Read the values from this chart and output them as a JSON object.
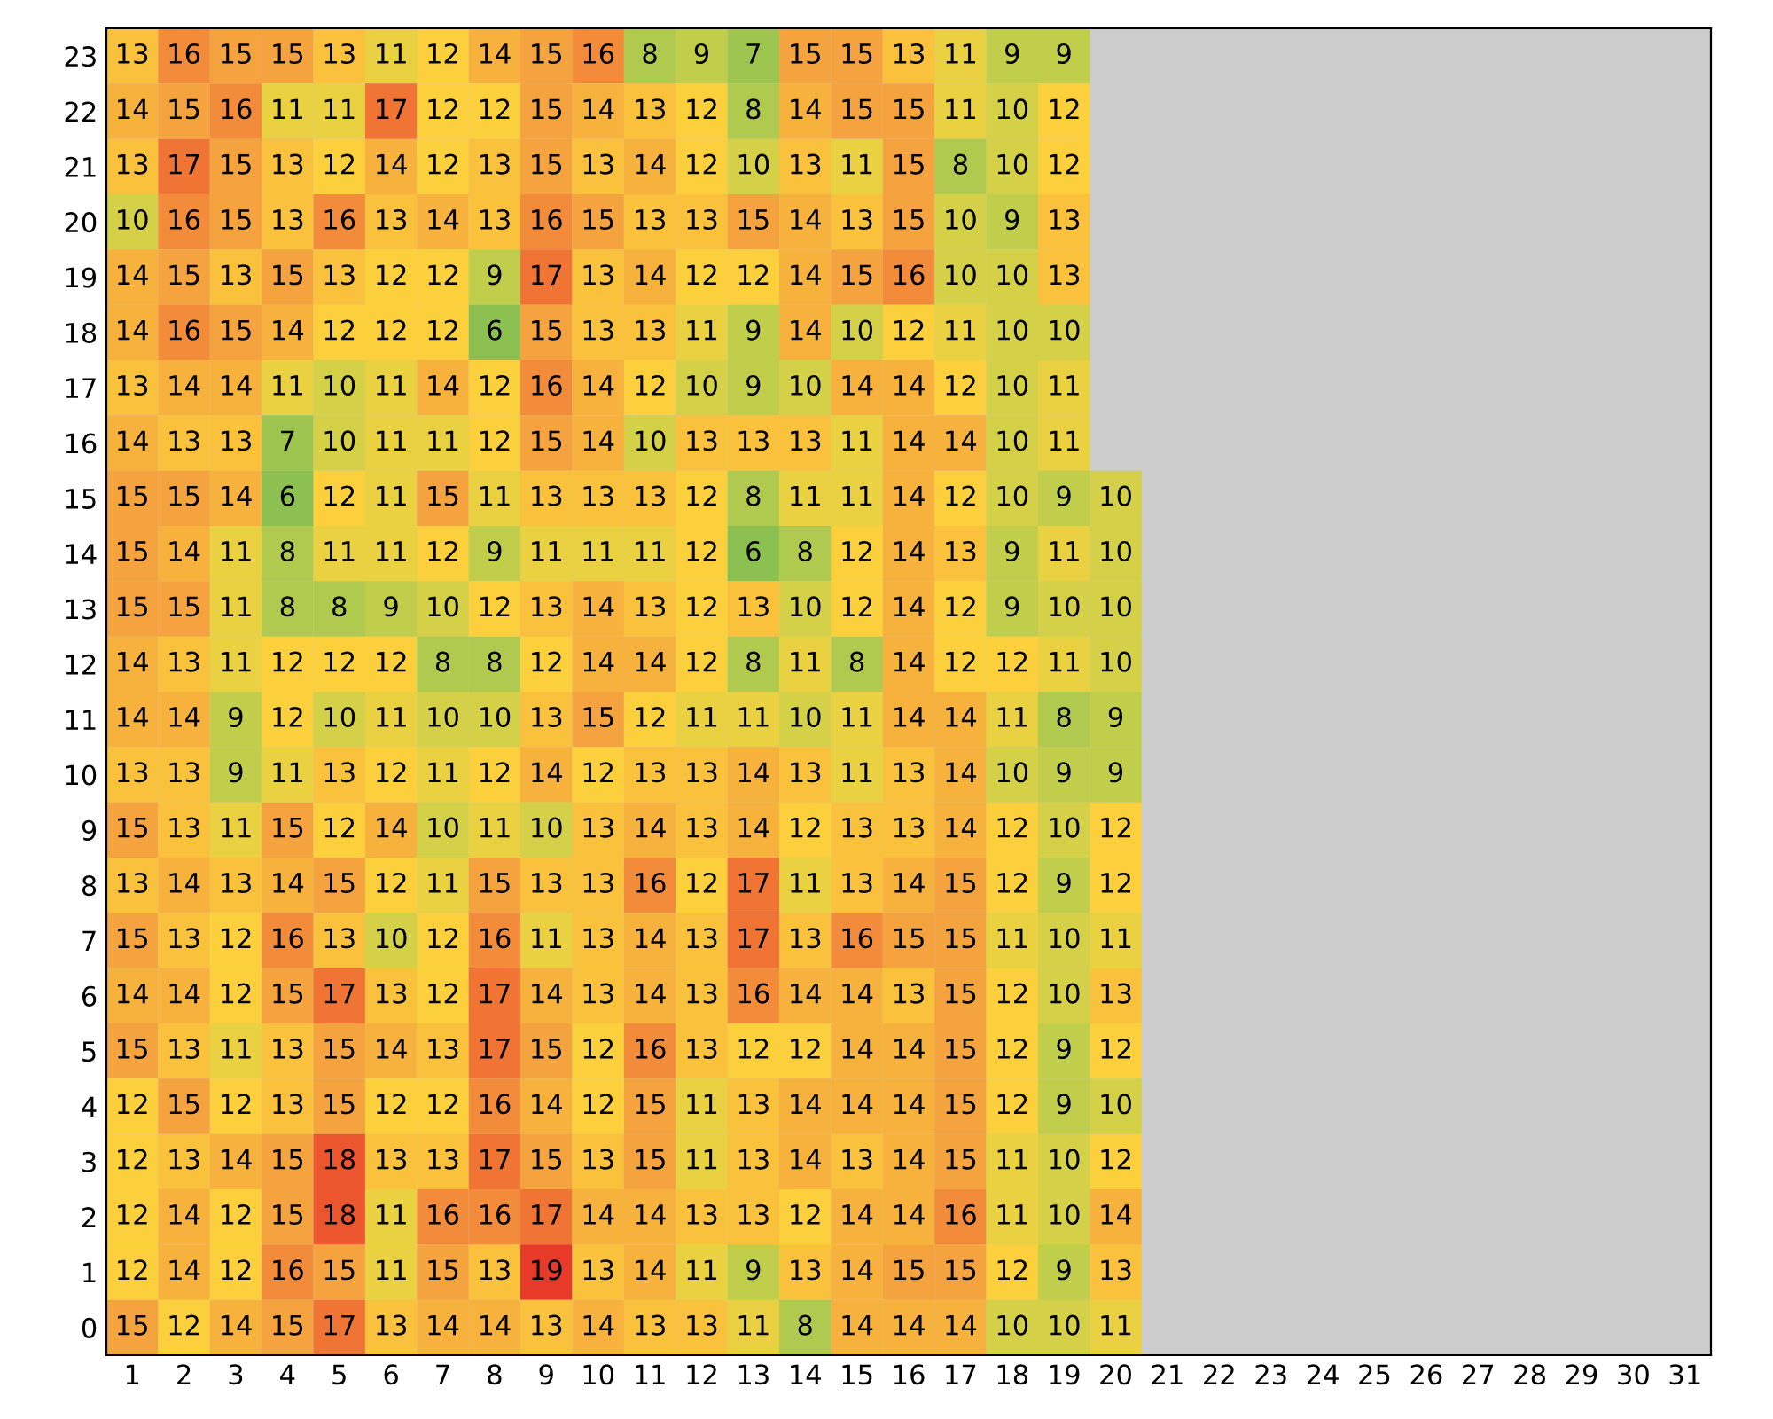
{
  "chart_data": {
    "type": "heatmap",
    "categories": [
      "1",
      "2",
      "3",
      "4",
      "5",
      "6",
      "7",
      "8",
      "9",
      "10",
      "11",
      "12",
      "13",
      "14",
      "15",
      "16",
      "17",
      "18",
      "19",
      "20",
      "21",
      "22",
      "23",
      "24",
      "25",
      "26",
      "27",
      "28",
      "29",
      "30",
      "31"
    ],
    "y_categories": [
      "23",
      "22",
      "21",
      "20",
      "19",
      "18",
      "17",
      "16",
      "15",
      "14",
      "13",
      "12",
      "11",
      "10",
      "9",
      "8",
      "7",
      "6",
      "5",
      "4",
      "3",
      "2",
      "1",
      "0"
    ],
    "data_labels": true,
    "cells": [
      [
        13,
        16,
        15,
        15,
        13,
        11,
        12,
        14,
        15,
        16,
        8,
        9,
        7,
        15,
        15,
        13,
        11,
        9,
        9,
        null,
        null,
        null,
        null,
        null,
        null,
        null,
        null,
        null,
        null,
        null,
        null
      ],
      [
        14,
        15,
        16,
        11,
        11,
        17,
        12,
        12,
        15,
        14,
        13,
        12,
        8,
        14,
        15,
        15,
        11,
        10,
        12,
        null,
        null,
        null,
        null,
        null,
        null,
        null,
        null,
        null,
        null,
        null,
        null
      ],
      [
        13,
        17,
        15,
        13,
        12,
        14,
        12,
        13,
        15,
        13,
        14,
        12,
        10,
        13,
        11,
        15,
        8,
        10,
        12,
        null,
        null,
        null,
        null,
        null,
        null,
        null,
        null,
        null,
        null,
        null,
        null
      ],
      [
        10,
        16,
        15,
        13,
        16,
        13,
        14,
        13,
        16,
        15,
        13,
        13,
        15,
        14,
        13,
        15,
        10,
        9,
        13,
        null,
        null,
        null,
        null,
        null,
        null,
        null,
        null,
        null,
        null,
        null,
        null
      ],
      [
        14,
        15,
        13,
        15,
        13,
        12,
        12,
        9,
        17,
        13,
        14,
        12,
        12,
        14,
        15,
        16,
        10,
        10,
        13,
        null,
        null,
        null,
        null,
        null,
        null,
        null,
        null,
        null,
        null,
        null,
        null
      ],
      [
        14,
        16,
        15,
        14,
        12,
        12,
        12,
        6,
        15,
        13,
        13,
        11,
        9,
        14,
        10,
        12,
        11,
        10,
        10,
        null,
        null,
        null,
        null,
        null,
        null,
        null,
        null,
        null,
        null,
        null,
        null
      ],
      [
        13,
        14,
        14,
        11,
        10,
        11,
        14,
        12,
        16,
        14,
        12,
        10,
        9,
        10,
        14,
        14,
        12,
        10,
        11,
        null,
        null,
        null,
        null,
        null,
        null,
        null,
        null,
        null,
        null,
        null,
        null
      ],
      [
        14,
        13,
        13,
        7,
        10,
        11,
        11,
        12,
        15,
        14,
        10,
        13,
        13,
        13,
        11,
        14,
        14,
        10,
        11,
        null,
        null,
        null,
        null,
        null,
        null,
        null,
        null,
        null,
        null,
        null,
        null
      ],
      [
        15,
        15,
        14,
        6,
        12,
        11,
        15,
        11,
        13,
        13,
        13,
        12,
        8,
        11,
        11,
        14,
        12,
        10,
        9,
        10,
        null,
        null,
        null,
        null,
        null,
        null,
        null,
        null,
        null,
        null,
        null
      ],
      [
        15,
        14,
        11,
        8,
        11,
        11,
        12,
        9,
        11,
        11,
        11,
        12,
        6,
        8,
        12,
        14,
        13,
        9,
        11,
        10,
        null,
        null,
        null,
        null,
        null,
        null,
        null,
        null,
        null,
        null,
        null
      ],
      [
        15,
        15,
        11,
        8,
        8,
        9,
        10,
        12,
        13,
        14,
        13,
        12,
        13,
        10,
        12,
        14,
        12,
        9,
        10,
        10,
        null,
        null,
        null,
        null,
        null,
        null,
        null,
        null,
        null,
        null,
        null
      ],
      [
        14,
        13,
        11,
        12,
        12,
        12,
        8,
        8,
        12,
        14,
        14,
        12,
        8,
        11,
        8,
        14,
        12,
        12,
        11,
        10,
        null,
        null,
        null,
        null,
        null,
        null,
        null,
        null,
        null,
        null,
        null
      ],
      [
        14,
        14,
        9,
        12,
        10,
        11,
        10,
        10,
        13,
        15,
        12,
        11,
        11,
        10,
        11,
        14,
        14,
        11,
        8,
        9,
        null,
        null,
        null,
        null,
        null,
        null,
        null,
        null,
        null,
        null,
        null
      ],
      [
        13,
        13,
        9,
        11,
        13,
        12,
        11,
        12,
        14,
        12,
        13,
        13,
        14,
        13,
        11,
        13,
        14,
        10,
        9,
        9,
        null,
        null,
        null,
        null,
        null,
        null,
        null,
        null,
        null,
        null,
        null
      ],
      [
        15,
        13,
        11,
        15,
        12,
        14,
        10,
        11,
        10,
        13,
        14,
        13,
        14,
        12,
        13,
        13,
        14,
        12,
        10,
        12,
        null,
        null,
        null,
        null,
        null,
        null,
        null,
        null,
        null,
        null,
        null
      ],
      [
        13,
        14,
        13,
        14,
        15,
        12,
        11,
        15,
        13,
        13,
        16,
        12,
        17,
        11,
        13,
        14,
        15,
        12,
        9,
        12,
        null,
        null,
        null,
        null,
        null,
        null,
        null,
        null,
        null,
        null,
        null
      ],
      [
        15,
        13,
        12,
        16,
        13,
        10,
        12,
        16,
        11,
        13,
        14,
        13,
        17,
        13,
        16,
        15,
        15,
        11,
        10,
        11,
        null,
        null,
        null,
        null,
        null,
        null,
        null,
        null,
        null,
        null,
        null
      ],
      [
        14,
        14,
        12,
        15,
        17,
        13,
        12,
        17,
        14,
        13,
        14,
        13,
        16,
        14,
        14,
        13,
        15,
        12,
        10,
        13,
        null,
        null,
        null,
        null,
        null,
        null,
        null,
        null,
        null,
        null,
        null
      ],
      [
        15,
        13,
        11,
        13,
        15,
        14,
        13,
        17,
        15,
        12,
        16,
        13,
        12,
        12,
        14,
        14,
        15,
        12,
        9,
        12,
        null,
        null,
        null,
        null,
        null,
        null,
        null,
        null,
        null,
        null,
        null
      ],
      [
        12,
        15,
        12,
        13,
        15,
        12,
        12,
        16,
        14,
        12,
        15,
        11,
        13,
        14,
        14,
        14,
        15,
        12,
        9,
        10,
        null,
        null,
        null,
        null,
        null,
        null,
        null,
        null,
        null,
        null,
        null
      ],
      [
        12,
        13,
        14,
        15,
        18,
        13,
        13,
        17,
        15,
        13,
        15,
        11,
        13,
        14,
        13,
        14,
        15,
        11,
        10,
        12,
        null,
        null,
        null,
        null,
        null,
        null,
        null,
        null,
        null,
        null,
        null
      ],
      [
        12,
        14,
        12,
        15,
        18,
        11,
        16,
        16,
        17,
        14,
        14,
        13,
        13,
        12,
        14,
        14,
        16,
        11,
        10,
        14,
        null,
        null,
        null,
        null,
        null,
        null,
        null,
        null,
        null,
        null,
        null
      ],
      [
        12,
        14,
        12,
        16,
        15,
        11,
        15,
        13,
        19,
        13,
        14,
        11,
        9,
        13,
        14,
        15,
        15,
        12,
        9,
        13,
        null,
        null,
        null,
        null,
        null,
        null,
        null,
        null,
        null,
        null,
        null
      ],
      [
        15,
        12,
        14,
        15,
        17,
        13,
        14,
        14,
        13,
        14,
        13,
        13,
        11,
        8,
        14,
        14,
        14,
        10,
        10,
        11,
        null,
        null,
        null,
        null,
        null,
        null,
        null,
        null,
        null,
        null,
        null
      ]
    ]
  }
}
